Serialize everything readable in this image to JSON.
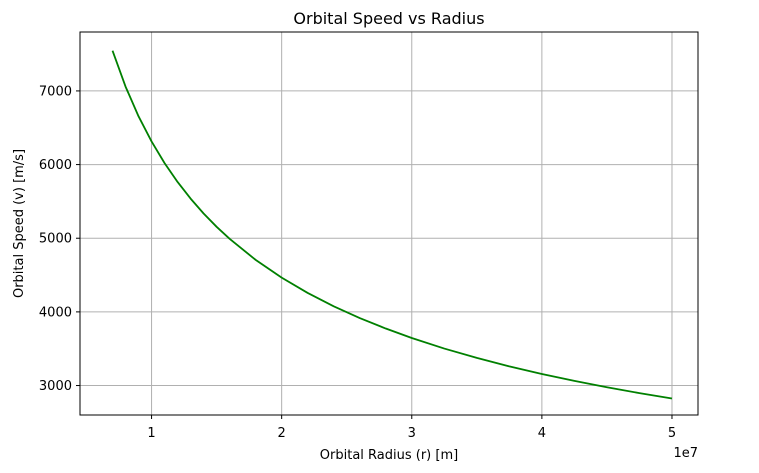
{
  "chart_data": {
    "type": "line",
    "title": "Orbital Speed vs Radius",
    "xlabel": "Orbital Radius (r) [m]",
    "ylabel": "Orbital Speed (v) [m/s]",
    "x_offset_label": "1e7",
    "x_scale": 10000000,
    "xlim": [
      0.45,
      5.2
    ],
    "ylim": [
      2600,
      7800
    ],
    "xticks": [
      1,
      2,
      3,
      4,
      5
    ],
    "yticks": [
      3000,
      4000,
      5000,
      6000,
      7000
    ],
    "grid": true,
    "series": [
      {
        "color": "#008000",
        "x": [
          0.7,
          0.8,
          0.9,
          1.0,
          1.1,
          1.2,
          1.3,
          1.4,
          1.5,
          1.6,
          1.8,
          2.0,
          2.2,
          2.4,
          2.6,
          2.8,
          3.0,
          3.25,
          3.5,
          3.75,
          4.0,
          4.25,
          4.5,
          4.75,
          5.0
        ],
        "y": [
          7546,
          7059,
          6655,
          6314,
          6020,
          5764,
          5538,
          5336,
          5155,
          4992,
          4706,
          4465,
          4257,
          4076,
          3916,
          3774,
          3645,
          3502,
          3375,
          3260,
          3157,
          3063,
          2977,
          2897,
          2824
        ]
      }
    ]
  }
}
